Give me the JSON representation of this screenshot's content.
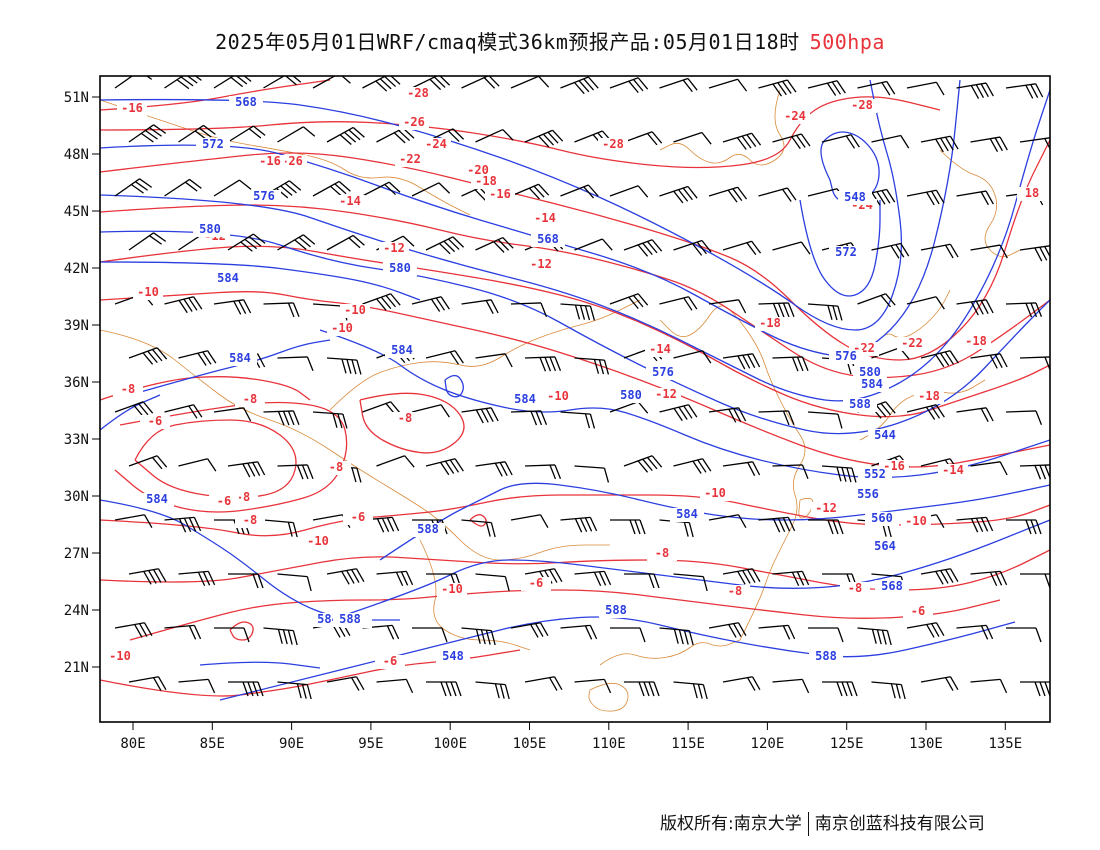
{
  "title": {
    "main": "2025年05月01日WRF/cmaq模式36km预报产品:05月01日18时",
    "level": "500hpa"
  },
  "colors": {
    "height_contour": "#2b3fe0",
    "temperature_contour": "#e8333a",
    "coastline": "#d98a3a",
    "wind_barb": "#000000",
    "frame": "#000000"
  },
  "axes": {
    "x_ticks": [
      "80E",
      "85E",
      "90E",
      "95E",
      "100E",
      "105E",
      "110E",
      "115E",
      "120E",
      "125E",
      "130E",
      "135E"
    ],
    "y_ticks": [
      "51N",
      "48N",
      "45N",
      "42N",
      "39N",
      "36N",
      "33N",
      "30N",
      "27N",
      "24N",
      "21N"
    ]
  },
  "height_labels": [
    "568",
    "572",
    "576",
    "580",
    "580",
    "584",
    "584",
    "584",
    "584",
    "584",
    "588",
    "568",
    "576",
    "580",
    "584",
    "588",
    "588",
    "572",
    "576",
    "580",
    "584",
    "588",
    "544",
    "548",
    "552",
    "556",
    "560",
    "564",
    "568",
    "548",
    "584",
    "588"
  ],
  "temperature_labels": [
    "-16",
    "-26",
    "-24",
    "-26",
    "-22",
    "-28",
    "-20",
    "-18",
    "-16",
    "-16",
    "-14",
    "-14",
    "-12",
    "-12",
    "-12",
    "-10",
    "-10",
    "-10",
    "-8",
    "-8",
    "-6",
    "-8",
    "-8",
    "-8",
    "-6",
    "-8",
    "-10",
    "-10",
    "-8",
    "-6",
    "-10",
    "-14",
    "-12",
    "-10",
    "-10",
    "-8",
    "-6",
    "-8",
    "-6",
    "-24",
    "-28",
    "-28",
    "-24",
    "-22",
    "-22",
    "-18",
    "-18",
    "-16",
    "-14",
    "-12",
    "-10",
    "-8",
    "-6",
    "-18",
    "18"
  ],
  "footer": {
    "left": "版权所有:南京大学",
    "right": "南京创蓝科技有限公司"
  }
}
